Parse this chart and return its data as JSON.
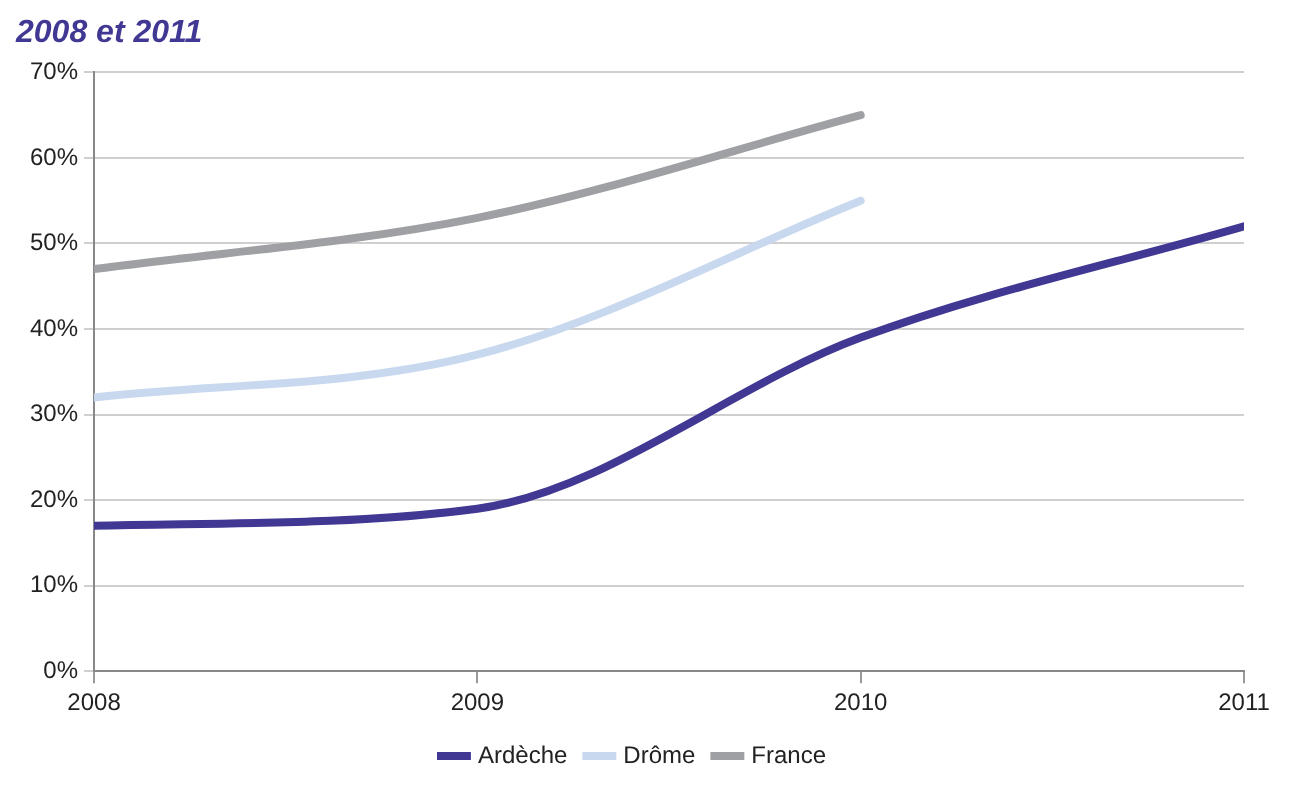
{
  "chart_data": {
    "type": "line",
    "title": "2008 et 2011",
    "x": [
      2008,
      2009,
      2010,
      2011
    ],
    "series": [
      {
        "name": "Ardèche",
        "color": "#403893",
        "values": [
          17,
          19,
          39,
          52
        ]
      },
      {
        "name": "Drôme",
        "color": "#c8d9ef",
        "values": [
          32,
          37,
          55,
          null
        ]
      },
      {
        "name": "France",
        "color": "#9fa0a4",
        "values": [
          47,
          53,
          65,
          null
        ]
      }
    ],
    "xlim": [
      2008,
      2011
    ],
    "xticks": [
      2008,
      2009,
      2010,
      2011
    ],
    "ylim": [
      0,
      70
    ],
    "yticks": [
      {
        "value": 0,
        "label": "0%"
      },
      {
        "value": 10,
        "label": "10%"
      },
      {
        "value": 20,
        "label": "20%"
      },
      {
        "value": 30,
        "label": "30%"
      },
      {
        "value": 40,
        "label": "40%"
      },
      {
        "value": 50,
        "label": "50%"
      },
      {
        "value": 60,
        "label": "60%"
      },
      {
        "value": 70,
        "label": "70%"
      }
    ],
    "grid": "y",
    "legend": "bottom",
    "marker": "none",
    "line_style": "solid"
  }
}
